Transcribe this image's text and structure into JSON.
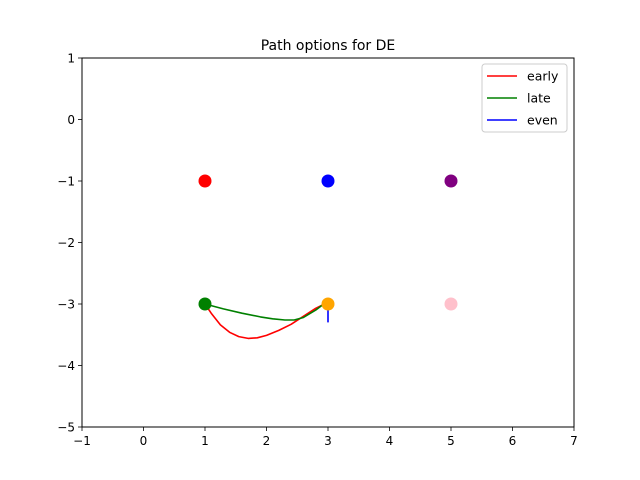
{
  "chart_data": {
    "type": "scatter",
    "title": "Path options for DE",
    "xlabel": "",
    "ylabel": "",
    "xlim": [
      -1,
      7
    ],
    "ylim": [
      -5,
      1
    ],
    "xticks": [
      -1,
      0,
      1,
      2,
      3,
      4,
      5,
      6,
      7
    ],
    "yticks": [
      1,
      0,
      -1,
      -2,
      -3,
      -4,
      -5
    ],
    "grid": false,
    "legend_position": "top-right",
    "points": [
      {
        "x": 1,
        "y": -1,
        "color": "#ff0000"
      },
      {
        "x": 3,
        "y": -1,
        "color": "#0000ff"
      },
      {
        "x": 5,
        "y": -1,
        "color": "#800080"
      },
      {
        "x": 1,
        "y": -3,
        "color": "#008000"
      },
      {
        "x": 3,
        "y": -3,
        "color": "#ffa500"
      },
      {
        "x": 5,
        "y": -3,
        "color": "#ffc0cb"
      }
    ],
    "series": [
      {
        "name": "early",
        "color": "#ff0000",
        "x": [
          1,
          1.1,
          1.25,
          1.4,
          1.55,
          1.7,
          1.85,
          2.0,
          2.2,
          2.4,
          2.6,
          2.8,
          3.0
        ],
        "y": [
          -3,
          -3.15,
          -3.34,
          -3.46,
          -3.53,
          -3.56,
          -3.55,
          -3.51,
          -3.43,
          -3.33,
          -3.2,
          -3.07,
          -2.97
        ]
      },
      {
        "name": "late",
        "color": "#008000",
        "x": [
          1,
          1.3,
          1.6,
          1.9,
          2.1,
          2.3,
          2.45,
          2.6,
          2.8,
          3.0
        ],
        "y": [
          -3,
          -3.08,
          -3.15,
          -3.21,
          -3.24,
          -3.26,
          -3.26,
          -3.22,
          -3.1,
          -2.95
        ]
      },
      {
        "name": "even",
        "color": "#0000ff",
        "x": [
          3,
          3
        ],
        "y": [
          -3,
          -3.3
        ]
      }
    ]
  }
}
